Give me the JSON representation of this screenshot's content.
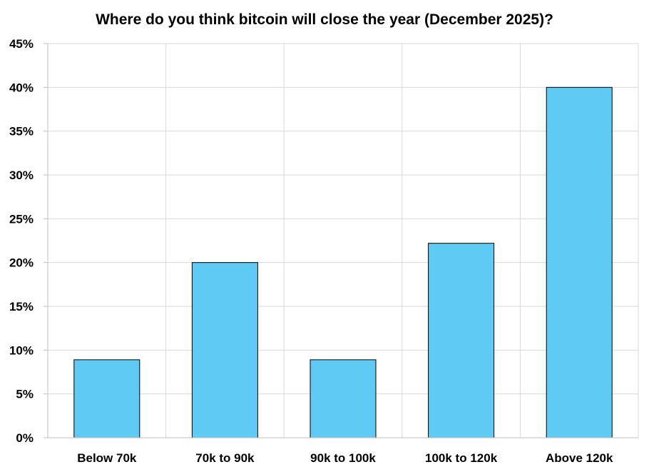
{
  "chart_data": {
    "type": "bar",
    "title": "Where do you think bitcoin will close the year (December 2025)?",
    "xlabel": "",
    "ylabel": "",
    "categories": [
      "Below 70k",
      "70k to 90k",
      "90k to 100k",
      "100k to 120k",
      "Above 120k"
    ],
    "values": [
      8.9,
      20.0,
      8.9,
      22.2,
      40.0
    ],
    "ylim": [
      0,
      45
    ],
    "yticks": [
      0,
      5,
      10,
      15,
      20,
      25,
      30,
      35,
      40,
      45
    ],
    "ytick_labels": [
      "0%",
      "5%",
      "10%",
      "15%",
      "20%",
      "25%",
      "30%",
      "35%",
      "40%",
      "45%"
    ],
    "grid": true,
    "legend": "none",
    "colors": {
      "bar_fill": "#5fcaf3",
      "bar_stroke": "#000000",
      "grid": "#d9d9d9"
    }
  }
}
